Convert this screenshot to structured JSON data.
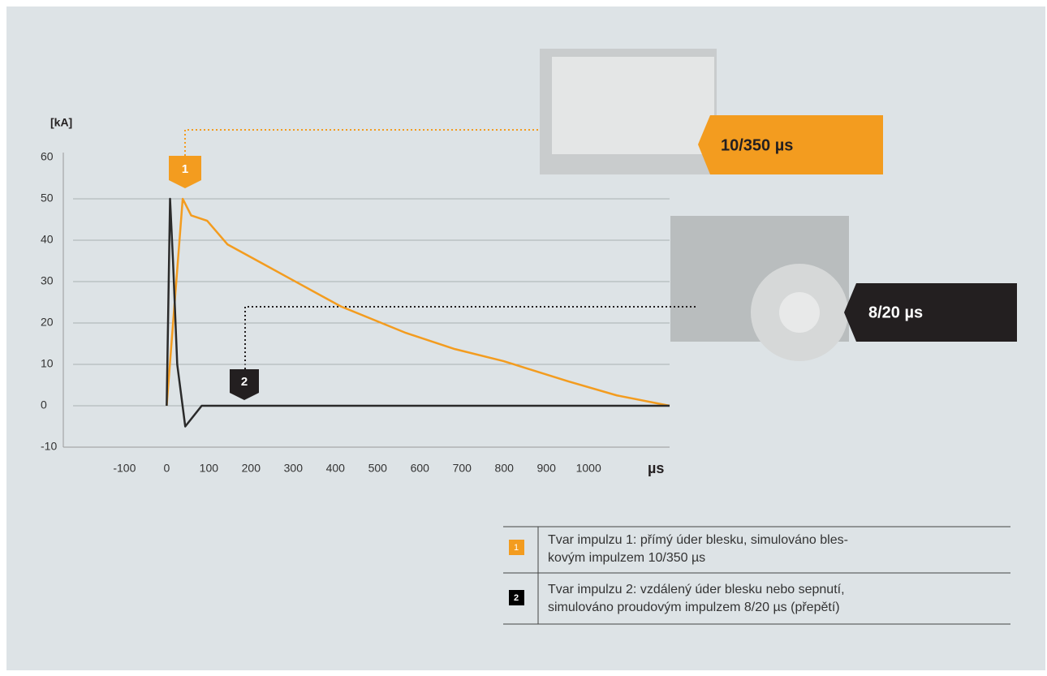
{
  "chart_data": {
    "type": "line",
    "y_label": "[kA]",
    "x_label": "µs",
    "xlim": [
      -245,
      1192
    ],
    "ylim": [
      -10,
      60
    ],
    "xticks": [
      -100,
      0,
      100,
      200,
      300,
      400,
      500,
      600,
      700,
      800,
      900,
      1000
    ],
    "yticks": [
      -10,
      0,
      10,
      20,
      30,
      40,
      50,
      60
    ],
    "grid": true,
    "series": [
      {
        "color": "#f39c1f",
        "x": [
          0,
          38,
          58,
          96,
          144,
          221,
          298,
          413,
          567,
          683,
          798,
          952,
          1067,
          1192
        ],
        "values": [
          0,
          50,
          46,
          44.7,
          39,
          34.7,
          30.4,
          24,
          17.6,
          13.7,
          10.8,
          5.9,
          2.5,
          0
        ]
      },
      {
        "color": "#2a2a2a",
        "x": [
          0,
          8,
          15,
          25,
          44,
          83,
          1192
        ],
        "values": [
          0,
          50,
          35,
          10,
          -5,
          0,
          0
        ]
      }
    ],
    "callouts": [
      {
        "number": "1",
        "label": "10/350 µs"
      },
      {
        "number": "2",
        "label": "8/20 µs"
      }
    ]
  },
  "legend_table": {
    "rows": [
      {
        "number": "1",
        "lines": [
          "Tvar impulzu 1: přímý úder blesku, simulováno bles-",
          "kovým impulzem 10/350 µs"
        ]
      },
      {
        "number": "2",
        "lines": [
          "Tvar impulzu 2: vzdálený úder blesku nebo sepnutí,",
          "simulováno proudovým impulzem 8/20 µs (přepětí)"
        ]
      }
    ]
  }
}
